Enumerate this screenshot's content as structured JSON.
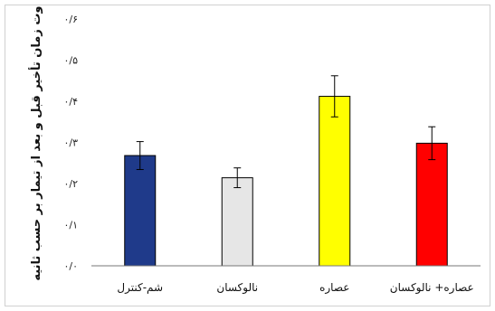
{
  "chart_data": {
    "type": "bar",
    "title": "",
    "xlabel": "",
    "ylabel": "تفاوت زمان تأخیر قبل و بعد از تیمار بر حسب ثانیه",
    "ylim": [
      0,
      0.6
    ],
    "yticks": [
      "۰/۰",
      "۰/۱",
      "۰/۲",
      "۰/۳",
      "۰/۴",
      "۰/۵",
      "۰/۶"
    ],
    "categories": [
      "شم-کنترل",
      "نالوکسان",
      "عصاره",
      "عصاره+ نالوکسان"
    ],
    "values": [
      0.268,
      0.214,
      0.412,
      0.298
    ],
    "errors": [
      0.034,
      0.024,
      0.05,
      0.04
    ],
    "colors": [
      "#1f3a8a",
      "#e6e6e6",
      "#ffff00",
      "#ff0000"
    ],
    "grid": false
  }
}
